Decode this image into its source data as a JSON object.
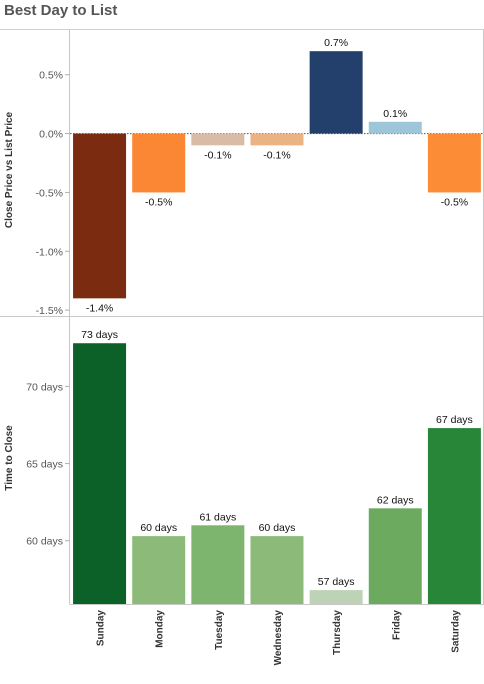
{
  "title": "Best Day to List",
  "chart_data": [
    {
      "type": "bar",
      "ylabel": "Close Price vs List Price",
      "categories": [
        "Sunday",
        "Monday",
        "Tuesday",
        "Wednesday",
        "Thursday",
        "Friday",
        "Saturday"
      ],
      "values": [
        -1.4,
        -0.5,
        -0.1,
        -0.1,
        0.7,
        0.1,
        -0.5
      ],
      "data_labels": [
        "-1.4%",
        "-0.5%",
        "-0.1%",
        "-0.1%",
        "0.7%",
        "0.1%",
        "-0.5%"
      ],
      "colors": [
        "#7b2b10",
        "#fb8633",
        "#d9bba6",
        "#ebb283",
        "#23406c",
        "#9ec6d9",
        "#fd8c37"
      ],
      "yticks": [
        0.5,
        0.0,
        -0.5,
        -1.0,
        -1.5
      ],
      "ytick_labels": [
        "0.5%",
        "0.0%",
        "-0.5%",
        "-1.0%",
        "-1.5%"
      ],
      "ylim": [
        -1.55,
        0.88
      ],
      "zero_line": "dotted"
    },
    {
      "type": "bar",
      "ylabel": "Time to Close",
      "categories": [
        "Sunday",
        "Monday",
        "Tuesday",
        "Wednesday",
        "Thursday",
        "Friday",
        "Saturday"
      ],
      "values": [
        72.8,
        60.3,
        61.0,
        60.3,
        56.8,
        62.1,
        67.3
      ],
      "data_labels": [
        "73 days",
        "60 days",
        "61 days",
        "60 days",
        "57 days",
        "62 days",
        "67 days"
      ],
      "colors": [
        "#0b6127",
        "#8cbb79",
        "#7db56e",
        "#8cbb79",
        "#bed3b6",
        "#6baa5f",
        "#288639"
      ],
      "yticks": [
        70,
        65,
        60
      ],
      "ytick_labels": [
        "70 days",
        "65 days",
        "60 days"
      ],
      "ylim": [
        55.9,
        74.5
      ]
    }
  ],
  "x_axis": {
    "tick_labels": [
      "Sunday",
      "Monday",
      "Tuesday",
      "Wednesday",
      "Thursday",
      "Friday",
      "Saturday"
    ]
  }
}
